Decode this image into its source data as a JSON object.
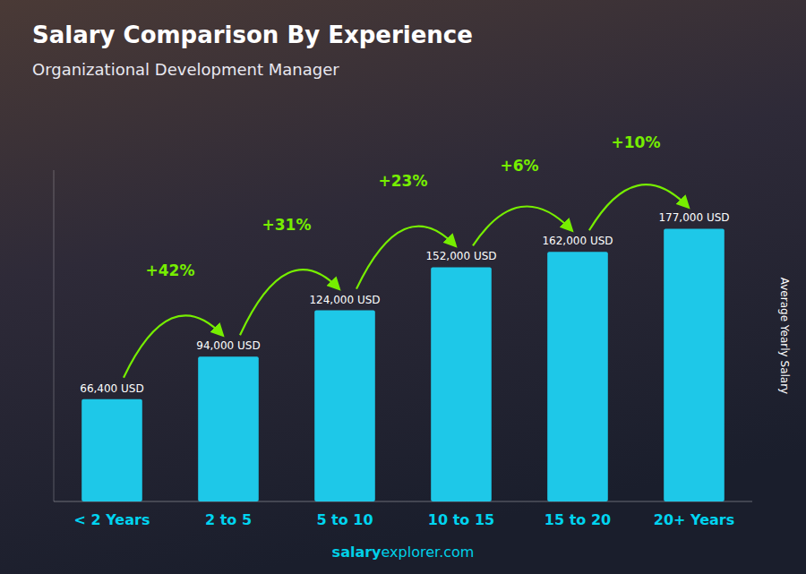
{
  "chart_data": {
    "type": "bar",
    "title": "Salary Comparison By Experience",
    "subtitle": "Organizational Development Manager",
    "categories": [
      "< 2 Years",
      "2 to 5",
      "5 to 10",
      "10 to 15",
      "15 to 20",
      "20+ Years"
    ],
    "values": [
      66400,
      94000,
      124000,
      152000,
      162000,
      177000
    ],
    "value_labels": [
      "66,400 USD",
      "94,000 USD",
      "124,000 USD",
      "152,000 USD",
      "162,000 USD",
      "177,000 USD"
    ],
    "data_labels": true,
    "annotations": [
      "+42%",
      "+31%",
      "+23%",
      "+6%",
      "+10%"
    ],
    "ylabel": "Average Yearly Salary",
    "footer": [
      "salary",
      "explorer.com"
    ],
    "color": "#1ec8e8",
    "ylim": [
      0,
      215000
    ],
    "yticks": [],
    "tick_labels": "x",
    "grid": false
  }
}
